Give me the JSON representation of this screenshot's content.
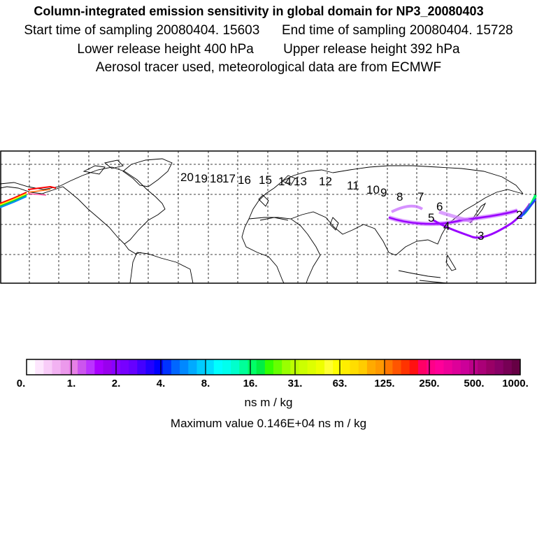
{
  "header": {
    "title": "Column-integrated emission sensitivity in global domain for NP3_20080403",
    "line2_start": "Start time of sampling 20080404. 15603",
    "line2_end": "End time of sampling 20080404. 15728",
    "line3_lower": "Lower release height  400 hPa",
    "line3_upper": "Upper release height  392 hPa",
    "line4": "Aerosol tracer used, meteorological data are from ECMWF"
  },
  "map": {
    "day_labels": [
      "2",
      "3",
      "4",
      "5",
      "6",
      "7",
      "8",
      "9",
      "10",
      "11",
      "12",
      "13",
      "14",
      "15",
      "16",
      "17",
      "18",
      "19",
      "20"
    ],
    "plume_colors": {
      "main": "#9900ff",
      "light": "#cc77ff",
      "source": "#ff0000"
    }
  },
  "colorbar": {
    "tick_labels": [
      "0.",
      "1.",
      "2.",
      "4.",
      "8.",
      "16.",
      "31.",
      "63.",
      "125.",
      "250.",
      "500.",
      "1000."
    ],
    "units": "ns m / kg",
    "max_value_text": "Maximum value  0.146E+04 ns m / kg"
  }
}
